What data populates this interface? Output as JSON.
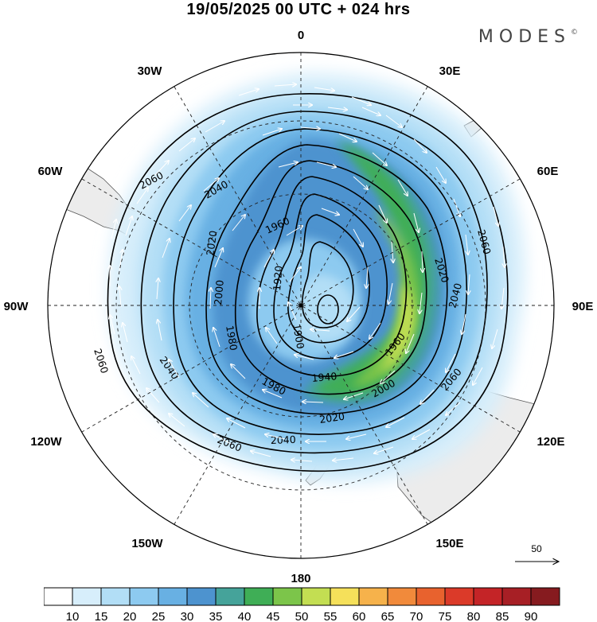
{
  "title": "19/05/2025  00 UTC  + 024 hrs",
  "brand": {
    "name": "MODES",
    "mark": "©"
  },
  "map": {
    "projection": "polar stereographic, south pole centred",
    "ocean_color": "#ffffff",
    "land_color": "#ececec",
    "graticule_style": "dashed",
    "longitude_labels": [
      {
        "text": "0",
        "lon": 0
      },
      {
        "text": "30E",
        "lon": 30
      },
      {
        "text": "60E",
        "lon": 60
      },
      {
        "text": "90E",
        "lon": 90
      },
      {
        "text": "120E",
        "lon": 120
      },
      {
        "text": "150E",
        "lon": 150
      },
      {
        "text": "180",
        "lon": 180
      },
      {
        "text": "150W",
        "lon": -150
      },
      {
        "text": "120W",
        "lon": -120
      },
      {
        "text": "90W",
        "lon": -90
      },
      {
        "text": "60W",
        "lon": -60
      },
      {
        "text": "30W",
        "lon": -30
      }
    ],
    "contour_labels": [
      "2060",
      "2040",
      "2020",
      "2000",
      "1980",
      "1960",
      "1940",
      "1920",
      "1900"
    ],
    "reference_vector": {
      "label": "50"
    }
  },
  "colorbar": {
    "tick_labels": [
      "10",
      "15",
      "20",
      "25",
      "30",
      "35",
      "40",
      "45",
      "50",
      "55",
      "60",
      "65",
      "70",
      "75",
      "80",
      "85",
      "90"
    ],
    "colors": [
      "#ffffff",
      "#d7eefb",
      "#b2def6",
      "#8dcaf0",
      "#68b0e3",
      "#4d93cf",
      "#45a39a",
      "#3fae56",
      "#7cc54a",
      "#c3de52",
      "#f5e05a",
      "#f6b24b",
      "#f18a3b",
      "#e8622e",
      "#db3a29",
      "#c42427",
      "#a71f25",
      "#861b1f"
    ]
  }
}
